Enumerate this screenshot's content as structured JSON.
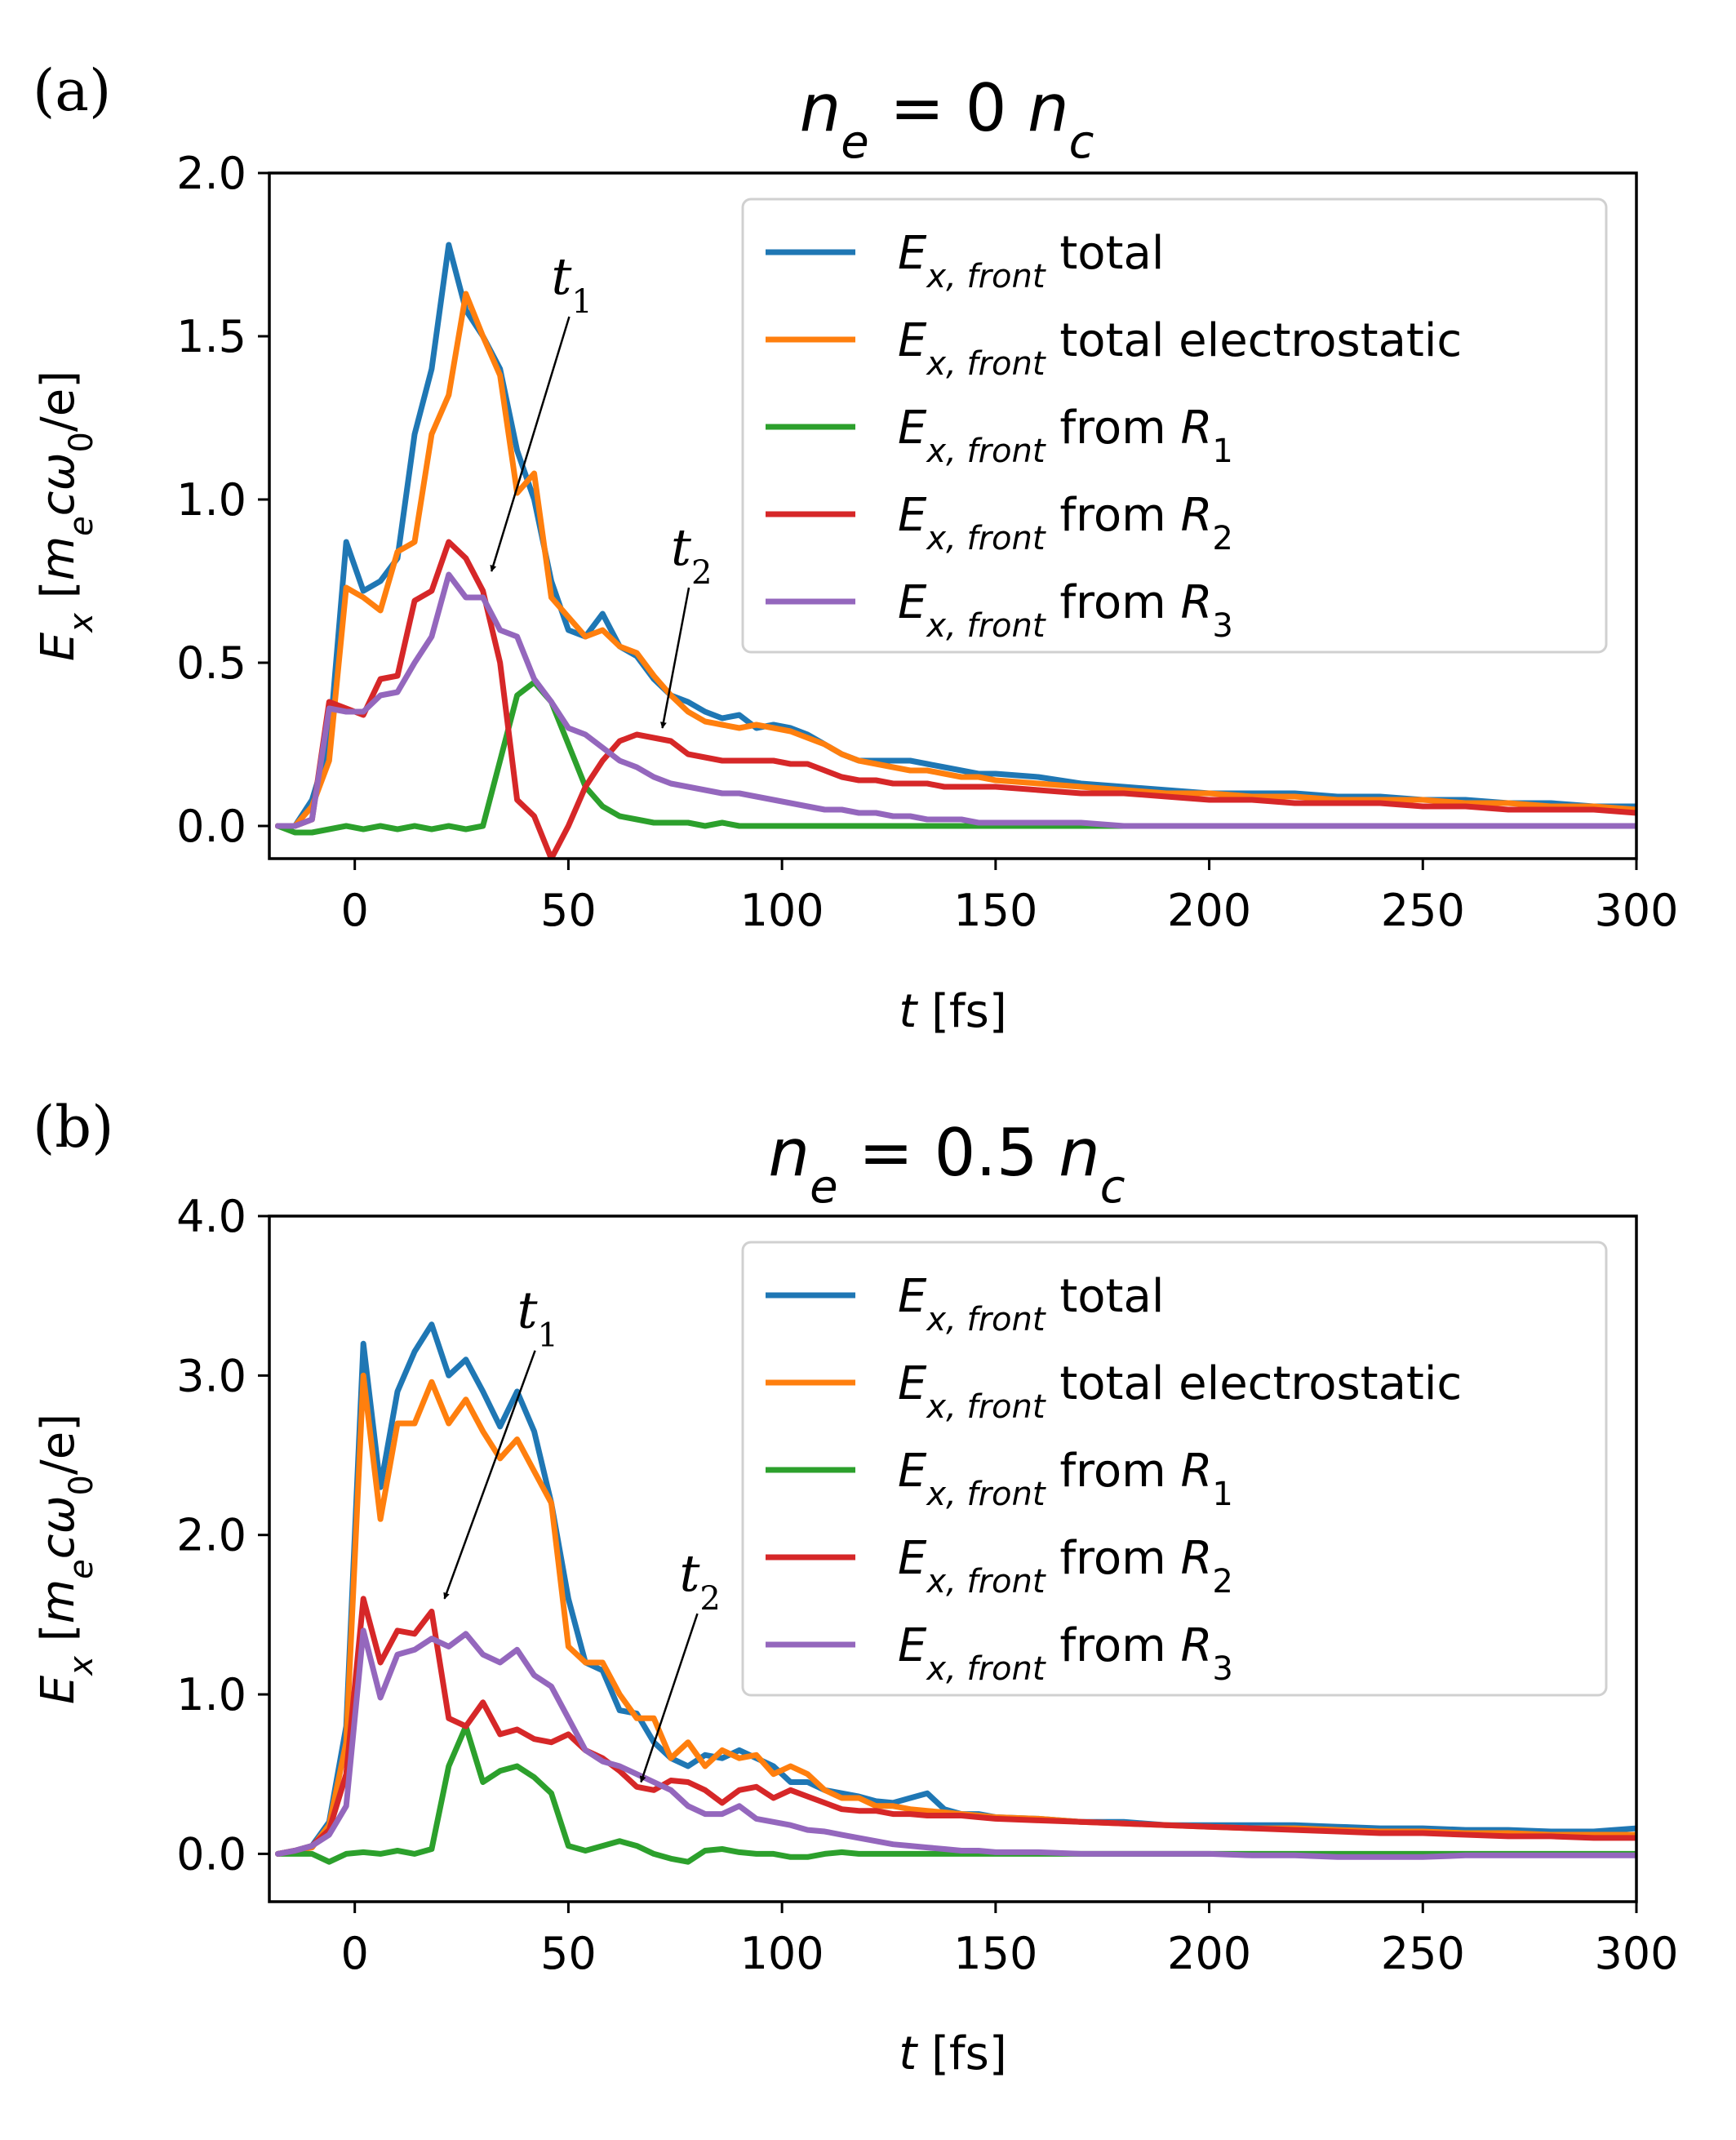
{
  "figure": {
    "xlabel_var": "t",
    "xlabel_unit": "[fs]",
    "ylabel_var": "E",
    "ylabel_sub": "x",
    "ylabel_unit_pre": "[",
    "ylabel_unit_m": "m",
    "ylabel_unit_e_sub": "e",
    "ylabel_unit_c": "c",
    "ylabel_unit_omega": "ω",
    "ylabel_unit_zero": "0",
    "ylabel_unit_post": "/e]",
    "legend_prefix": "E",
    "legend_prefix_sub": "x, front"
  },
  "colors": {
    "total": "#1f77b4",
    "electrostatic": "#ff7f0e",
    "R1": "#2ca02c",
    "R2": "#d62728",
    "R3": "#9467bd"
  },
  "chart_data": [
    {
      "type": "line",
      "panel_label": "(a)",
      "title_var": "n",
      "title_var_sub": "e",
      "title_eq": " = 0 ",
      "title_rhs": "n",
      "title_rhs_sub": "c",
      "xlim": [
        -20,
        300
      ],
      "ylim": [
        -0.1,
        2.0
      ],
      "xticks": [
        0,
        50,
        100,
        150,
        200,
        250,
        300
      ],
      "yticks": [
        "0.0",
        "0.5",
        "1.0",
        "1.5",
        "2.0"
      ],
      "legend": [
        "total",
        "total electrostatic",
        "from R1",
        "from R2",
        "from R3"
      ],
      "legend_placement": "top-right",
      "x": [
        -18,
        -14,
        -10,
        -6,
        -2,
        2,
        6,
        10,
        14,
        18,
        22,
        26,
        30,
        34,
        38,
        42,
        46,
        50,
        54,
        58,
        62,
        66,
        70,
        74,
        78,
        82,
        86,
        90,
        94,
        98,
        102,
        106,
        110,
        114,
        118,
        122,
        126,
        130,
        134,
        138,
        142,
        146,
        150,
        160,
        170,
        180,
        190,
        200,
        210,
        220,
        230,
        240,
        250,
        260,
        270,
        280,
        290,
        300
      ],
      "series": [
        {
          "key": "total",
          "values": [
            0,
            0,
            0.08,
            0.25,
            0.87,
            0.72,
            0.75,
            0.82,
            1.2,
            1.4,
            1.78,
            1.58,
            1.5,
            1.4,
            1.15,
            1.0,
            0.75,
            0.6,
            0.58,
            0.65,
            0.55,
            0.52,
            0.45,
            0.4,
            0.38,
            0.35,
            0.33,
            0.34,
            0.3,
            0.31,
            0.3,
            0.28,
            0.25,
            0.22,
            0.2,
            0.2,
            0.2,
            0.2,
            0.19,
            0.18,
            0.17,
            0.16,
            0.16,
            0.15,
            0.13,
            0.12,
            0.11,
            0.1,
            0.1,
            0.1,
            0.09,
            0.09,
            0.08,
            0.08,
            0.07,
            0.07,
            0.06,
            0.06
          ]
        },
        {
          "key": "electrostatic",
          "values": [
            0,
            0,
            0.06,
            0.2,
            0.73,
            0.7,
            0.66,
            0.84,
            0.87,
            1.2,
            1.32,
            1.63,
            1.5,
            1.38,
            1.02,
            1.08,
            0.7,
            0.64,
            0.58,
            0.6,
            0.55,
            0.53,
            0.46,
            0.4,
            0.35,
            0.32,
            0.31,
            0.3,
            0.31,
            0.3,
            0.29,
            0.27,
            0.25,
            0.22,
            0.2,
            0.19,
            0.18,
            0.17,
            0.17,
            0.16,
            0.15,
            0.15,
            0.14,
            0.13,
            0.12,
            0.11,
            0.1,
            0.1,
            0.09,
            0.09,
            0.08,
            0.08,
            0.08,
            0.07,
            0.07,
            0.06,
            0.06,
            0.05
          ]
        },
        {
          "key": "R1",
          "values": [
            0,
            -0.02,
            -0.02,
            -0.01,
            0,
            -0.01,
            0,
            -0.01,
            0,
            -0.01,
            0,
            -0.01,
            0,
            0.2,
            0.4,
            0.44,
            0.38,
            0.25,
            0.12,
            0.06,
            0.03,
            0.02,
            0.01,
            0.01,
            0.01,
            0,
            0.01,
            0,
            0,
            0,
            0,
            0,
            0,
            0,
            0,
            0,
            0,
            0,
            0,
            0,
            0,
            0,
            0,
            0,
            0,
            0,
            0,
            0,
            0,
            0,
            0,
            0,
            0,
            0,
            0,
            0,
            0,
            0
          ]
        },
        {
          "key": "R2",
          "values": [
            0,
            0,
            0.02,
            0.38,
            0.36,
            0.34,
            0.45,
            0.46,
            0.69,
            0.72,
            0.87,
            0.82,
            0.72,
            0.5,
            0.08,
            0.03,
            -0.1,
            0,
            0.12,
            0.2,
            0.26,
            0.28,
            0.27,
            0.26,
            0.22,
            0.21,
            0.2,
            0.2,
            0.2,
            0.2,
            0.19,
            0.19,
            0.17,
            0.15,
            0.14,
            0.14,
            0.13,
            0.13,
            0.13,
            0.12,
            0.12,
            0.12,
            0.12,
            0.11,
            0.1,
            0.1,
            0.09,
            0.08,
            0.08,
            0.07,
            0.07,
            0.07,
            0.06,
            0.06,
            0.05,
            0.05,
            0.05,
            0.04
          ]
        },
        {
          "key": "R3",
          "values": [
            0,
            0,
            0.02,
            0.36,
            0.35,
            0.35,
            0.4,
            0.41,
            0.5,
            0.58,
            0.77,
            0.7,
            0.7,
            0.6,
            0.58,
            0.45,
            0.38,
            0.3,
            0.28,
            0.24,
            0.2,
            0.18,
            0.15,
            0.13,
            0.12,
            0.11,
            0.1,
            0.1,
            0.09,
            0.08,
            0.07,
            0.06,
            0.05,
            0.05,
            0.04,
            0.04,
            0.03,
            0.03,
            0.02,
            0.02,
            0.02,
            0.01,
            0.01,
            0.01,
            0.01,
            0,
            0,
            0,
            0,
            0,
            0,
            0,
            0,
            0,
            0,
            0,
            0,
            0
          ]
        }
      ],
      "annotations": [
        {
          "text": "t",
          "sub": "1",
          "text_at": [
            46,
            1.63
          ],
          "arrow_to": [
            32,
            0.78
          ]
        },
        {
          "text": "t",
          "sub": "2",
          "text_at": [
            74,
            0.8
          ],
          "arrow_to": [
            72,
            0.3
          ]
        }
      ]
    },
    {
      "type": "line",
      "panel_label": "(b)",
      "title_var": "n",
      "title_var_sub": "e",
      "title_eq": " = 0.5 ",
      "title_rhs": "n",
      "title_rhs_sub": "c",
      "xlim": [
        -20,
        300
      ],
      "ylim": [
        -0.3,
        4.0
      ],
      "xticks": [
        0,
        50,
        100,
        150,
        200,
        250,
        300
      ],
      "yticks": [
        "0.0",
        "1.0",
        "2.0",
        "3.0",
        "4.0"
      ],
      "legend": [
        "total",
        "total electrostatic",
        "from R1",
        "from R2",
        "from R3"
      ],
      "legend_placement": "top-right",
      "x": [
        -18,
        -14,
        -10,
        -6,
        -2,
        2,
        6,
        10,
        14,
        18,
        22,
        26,
        30,
        34,
        38,
        42,
        46,
        50,
        54,
        58,
        62,
        66,
        70,
        74,
        78,
        82,
        86,
        90,
        94,
        98,
        102,
        106,
        110,
        114,
        118,
        122,
        126,
        130,
        134,
        138,
        142,
        146,
        150,
        160,
        170,
        180,
        190,
        200,
        210,
        220,
        230,
        240,
        250,
        260,
        270,
        280,
        290,
        300
      ],
      "series": [
        {
          "key": "total",
          "values": [
            0,
            0.02,
            0.05,
            0.2,
            0.8,
            3.2,
            2.3,
            2.9,
            3.15,
            3.32,
            3.0,
            3.1,
            2.9,
            2.68,
            2.9,
            2.65,
            2.2,
            1.6,
            1.2,
            1.15,
            0.9,
            0.88,
            0.7,
            0.6,
            0.55,
            0.62,
            0.6,
            0.65,
            0.6,
            0.55,
            0.45,
            0.45,
            0.4,
            0.38,
            0.36,
            0.33,
            0.32,
            0.35,
            0.38,
            0.28,
            0.25,
            0.25,
            0.23,
            0.22,
            0.2,
            0.2,
            0.18,
            0.18,
            0.18,
            0.18,
            0.17,
            0.16,
            0.16,
            0.15,
            0.15,
            0.14,
            0.14,
            0.16
          ]
        },
        {
          "key": "electrostatic",
          "values": [
            0,
            0.02,
            0.04,
            0.18,
            0.7,
            3.0,
            2.1,
            2.7,
            2.7,
            2.96,
            2.7,
            2.85,
            2.65,
            2.48,
            2.6,
            2.4,
            2.2,
            1.3,
            1.2,
            1.2,
            1.0,
            0.85,
            0.85,
            0.6,
            0.7,
            0.55,
            0.65,
            0.6,
            0.62,
            0.5,
            0.55,
            0.5,
            0.4,
            0.35,
            0.35,
            0.3,
            0.3,
            0.28,
            0.27,
            0.26,
            0.25,
            0.24,
            0.23,
            0.22,
            0.2,
            0.19,
            0.18,
            0.17,
            0.16,
            0.16,
            0.15,
            0.14,
            0.14,
            0.13,
            0.13,
            0.12,
            0.12,
            0.12
          ]
        },
        {
          "key": "R1",
          "values": [
            0,
            0,
            0,
            -0.05,
            0,
            0.01,
            0,
            0.02,
            0,
            0.03,
            0.55,
            0.8,
            0.45,
            0.52,
            0.55,
            0.48,
            0.38,
            0.05,
            0.02,
            0.05,
            0.08,
            0.05,
            0,
            -0.03,
            -0.05,
            0.02,
            0.03,
            0.01,
            0,
            0,
            -0.02,
            -0.02,
            0,
            0.01,
            0,
            0,
            0,
            0,
            0,
            0,
            0,
            0,
            0,
            0,
            0,
            0,
            0,
            0,
            0,
            0,
            0,
            0,
            0,
            0,
            0,
            0,
            0,
            0
          ]
        },
        {
          "key": "R2",
          "values": [
            0,
            0.02,
            0.05,
            0.15,
            0.5,
            1.6,
            1.2,
            1.4,
            1.38,
            1.52,
            0.85,
            0.8,
            0.95,
            0.75,
            0.78,
            0.72,
            0.7,
            0.75,
            0.65,
            0.6,
            0.52,
            0.42,
            0.4,
            0.46,
            0.45,
            0.4,
            0.32,
            0.4,
            0.42,
            0.35,
            0.4,
            0.36,
            0.32,
            0.28,
            0.27,
            0.27,
            0.25,
            0.25,
            0.24,
            0.24,
            0.24,
            0.23,
            0.22,
            0.21,
            0.2,
            0.19,
            0.18,
            0.17,
            0.16,
            0.15,
            0.14,
            0.13,
            0.13,
            0.12,
            0.11,
            0.11,
            0.1,
            0.1
          ]
        },
        {
          "key": "R3",
          "values": [
            0,
            0.02,
            0.05,
            0.12,
            0.3,
            1.4,
            0.98,
            1.25,
            1.28,
            1.35,
            1.3,
            1.38,
            1.25,
            1.2,
            1.28,
            1.12,
            1.05,
            0.85,
            0.65,
            0.58,
            0.55,
            0.5,
            0.45,
            0.4,
            0.3,
            0.25,
            0.25,
            0.3,
            0.22,
            0.2,
            0.18,
            0.15,
            0.14,
            0.12,
            0.1,
            0.08,
            0.06,
            0.05,
            0.04,
            0.03,
            0.02,
            0.02,
            0.01,
            0.01,
            0,
            0,
            0,
            0,
            -0.01,
            -0.01,
            -0.02,
            -0.02,
            -0.02,
            -0.01,
            -0.01,
            -0.01,
            -0.01,
            -0.01
          ]
        }
      ],
      "annotations": [
        {
          "text": "t",
          "sub": "1",
          "text_at": [
            38,
            3.3
          ],
          "arrow_to": [
            21,
            1.6
          ]
        },
        {
          "text": "t",
          "sub": "2",
          "text_at": [
            76,
            1.65
          ],
          "arrow_to": [
            67,
            0.45
          ]
        }
      ]
    }
  ]
}
